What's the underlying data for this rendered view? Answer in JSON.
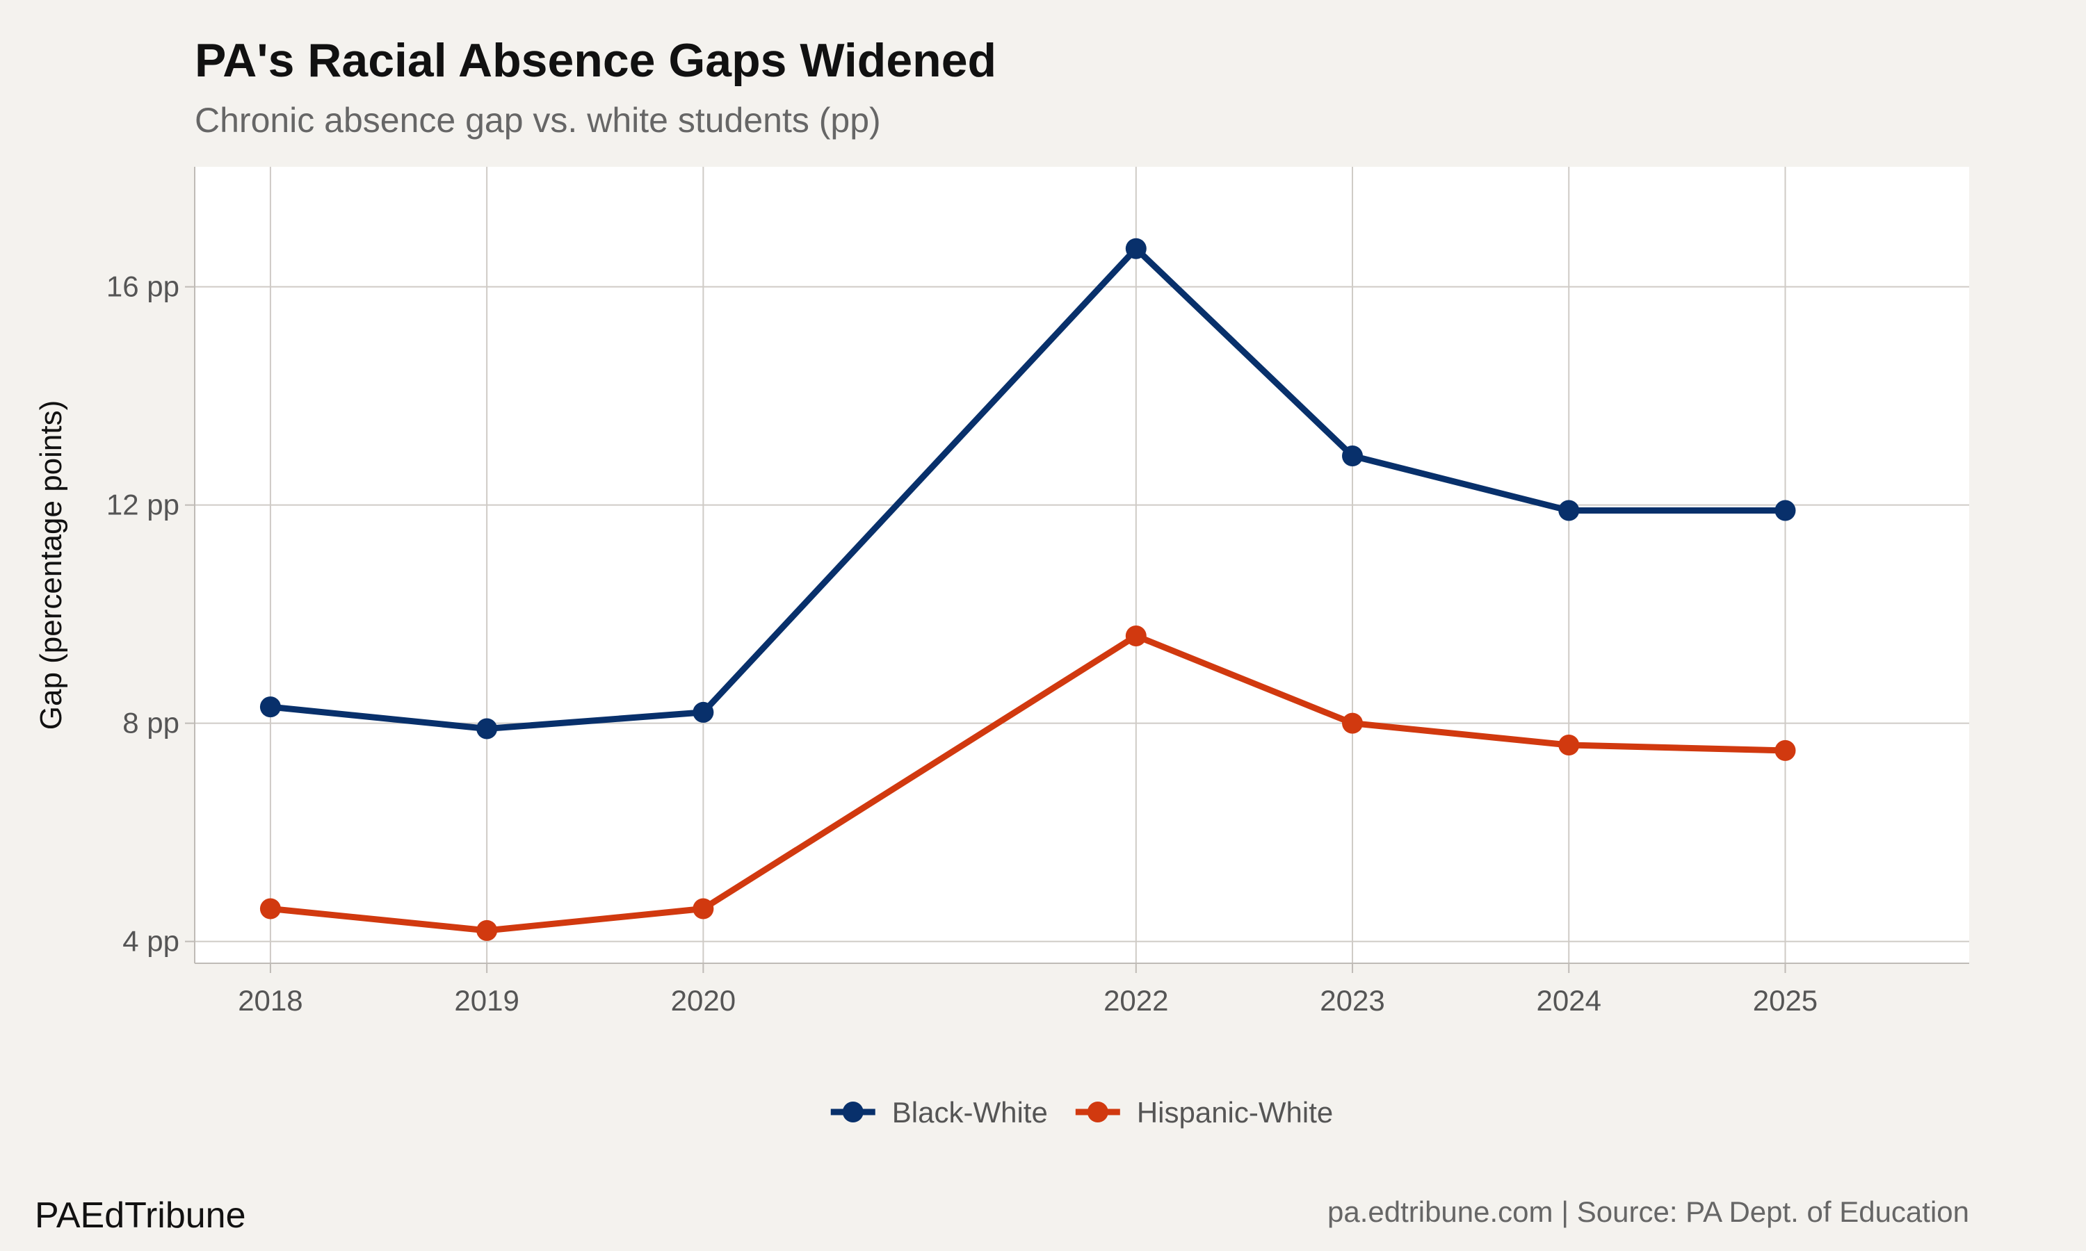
{
  "chart_data": {
    "type": "line",
    "title": "PA's Racial Absence Gaps Widened",
    "subtitle": "Chronic absence gap vs. white students (pp)",
    "xlabel": "",
    "ylabel": "Gap (percentage points)",
    "x": [
      2018,
      2019,
      2020,
      2022,
      2023,
      2024,
      2025
    ],
    "xlim": [
      2017.65,
      2025.85
    ],
    "ylim": [
      3.6,
      18.2
    ],
    "yticks": [
      4,
      8,
      12,
      16
    ],
    "ytick_labels": [
      "4 pp",
      "8 pp",
      "12 pp",
      "16 pp"
    ],
    "xtick_labels": [
      "2018",
      "2019",
      "2020",
      "2022",
      "2023",
      "2024",
      "2025"
    ],
    "grid": true,
    "legend_position": "bottom",
    "series": [
      {
        "name": "Black-White",
        "color": "#08306b",
        "values": [
          8.3,
          7.9,
          8.2,
          16.7,
          12.9,
          11.9,
          11.9
        ]
      },
      {
        "name": "Hispanic-White",
        "color": "#d1390f",
        "values": [
          4.6,
          4.2,
          4.6,
          9.6,
          8.0,
          7.6,
          7.5
        ]
      }
    ]
  },
  "footer": {
    "brand": "PAEdTribune",
    "source": "pa.edtribune.com | Source: PA Dept. of Education"
  }
}
